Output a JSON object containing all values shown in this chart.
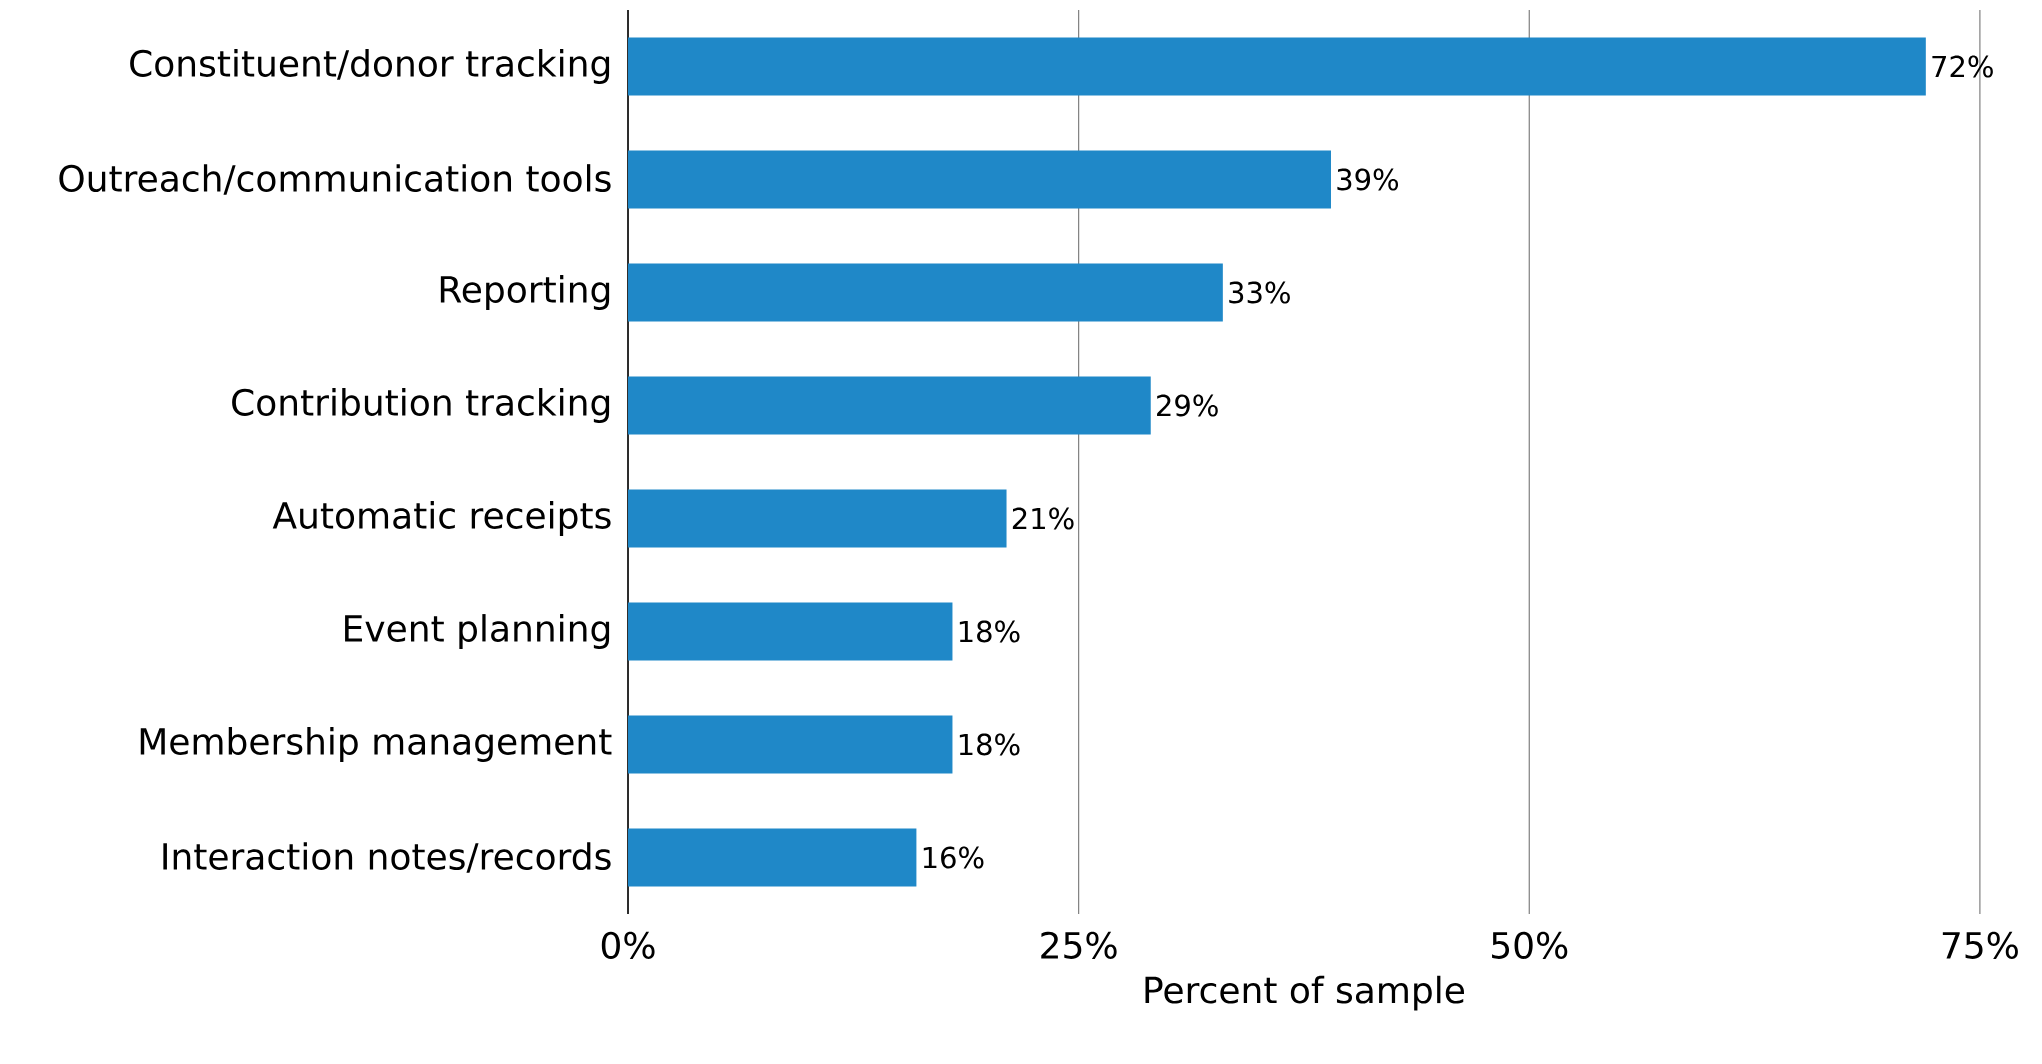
{
  "chart_data": {
    "type": "bar",
    "orientation": "horizontal",
    "xlabel": "Percent of sample",
    "categories": [
      "Constituent/donor tracking",
      "Outreach/communication tools",
      "Reporting",
      "Contribution tracking",
      "Automatic receipts",
      "Event planning",
      "Membership management",
      "Interaction notes/records"
    ],
    "values": [
      72,
      39,
      33,
      29,
      21,
      18,
      18,
      16
    ],
    "value_labels": [
      "72%",
      "39%",
      "33%",
      "29%",
      "21%",
      "18%",
      "18%",
      "16%"
    ],
    "color": "#1f88c8",
    "xlim": [
      0,
      75
    ],
    "xticks": [
      {
        "value": 0,
        "label": "0%"
      },
      {
        "value": 25,
        "label": "25%"
      },
      {
        "value": 50,
        "label": "50%"
      },
      {
        "value": 75,
        "label": "75%"
      }
    ],
    "grid": "x"
  }
}
